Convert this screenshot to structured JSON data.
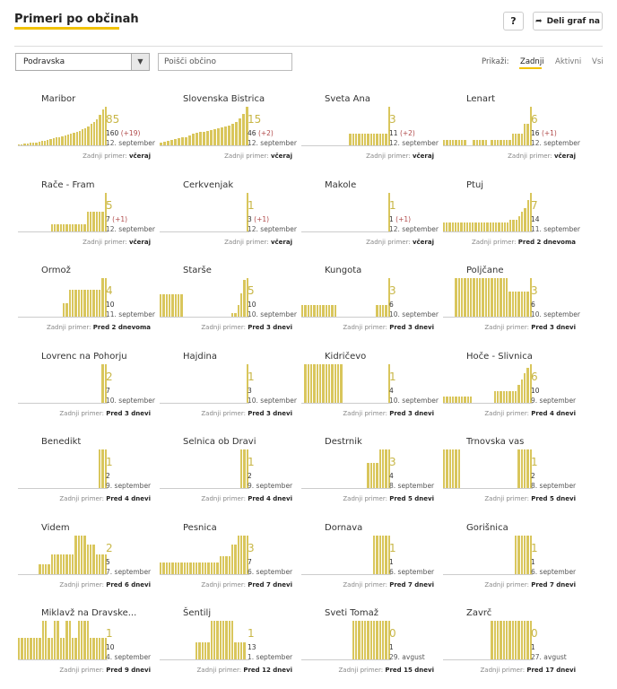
{
  "header": {
    "title": "Primeri po občinah",
    "help_label": "?",
    "share_label": "Deli graf na"
  },
  "filters": {
    "region_selected": "Podravska",
    "search_placeholder": "Poišči občino"
  },
  "view": {
    "label": "Prikaži:",
    "tabs": [
      "Zadnji",
      "Aktivni",
      "Vsi"
    ],
    "active_tab": "Zadnji"
  },
  "colors": {
    "accent": "#f2c200",
    "bar": "#d9c65c",
    "delta": "#b04848"
  },
  "last_case_label": "Zadnji primer:",
  "municipalities": [
    {
      "name": "Maribor",
      "big": "85",
      "total": "160",
      "delta": "(+19)",
      "date": "12. september",
      "last": "včeraj",
      "bars": [
        0.02,
        0.03,
        0.05,
        0.05,
        0.07,
        0.08,
        0.08,
        0.1,
        0.12,
        0.12,
        0.15,
        0.16,
        0.18,
        0.2,
        0.22,
        0.24,
        0.26,
        0.28,
        0.3,
        0.32,
        0.35,
        0.38,
        0.42,
        0.45,
        0.5,
        0.55,
        0.6,
        0.68,
        0.78,
        0.92,
        1.0
      ]
    },
    {
      "name": "Slovenska Bistrica",
      "big": "15",
      "total": "46",
      "delta": "(+2)",
      "date": "12. september",
      "last": "včeraj",
      "bars": [
        0.08,
        0.1,
        0.12,
        0.14,
        0.16,
        0.18,
        0.2,
        0.22,
        0.26,
        0.3,
        0.32,
        0.34,
        0.36,
        0.38,
        0.4,
        0.42,
        0.44,
        0.46,
        0.48,
        0.52,
        0.55,
        0.6,
        0.7,
        0.82,
        1.0
      ]
    },
    {
      "name": "Sveta Ana",
      "big": "3",
      "total": "11",
      "delta": "(+2)",
      "date": "12. september",
      "last": "včeraj",
      "bars": [
        0,
        0,
        0,
        0,
        0,
        0,
        0,
        0,
        0,
        0,
        0,
        0,
        0,
        0,
        0,
        0,
        0.3,
        0.3,
        0.3,
        0.3,
        0.3,
        0.3,
        0.3,
        0.3,
        0.3,
        0.3,
        0.3,
        0.3,
        0.3,
        1.0
      ]
    },
    {
      "name": "Lenart",
      "big": "6",
      "total": "16",
      "delta": "(+1)",
      "date": "12. september",
      "last": "včeraj",
      "bars": [
        0.15,
        0.15,
        0.15,
        0.15,
        0.15,
        0.15,
        0.15,
        0.15,
        0,
        0,
        0.15,
        0.15,
        0.15,
        0.15,
        0.15,
        0,
        0.15,
        0.15,
        0.15,
        0.15,
        0.15,
        0.15,
        0.15,
        0.3,
        0.3,
        0.3,
        0.3,
        0.55,
        0.55,
        1.0
      ]
    },
    {
      "name": "Rače - Fram",
      "big": "5",
      "total": "7",
      "delta": "(+1)",
      "date": "12. september",
      "last": "včeraj",
      "bars": [
        0,
        0,
        0,
        0,
        0,
        0,
        0,
        0,
        0,
        0,
        0,
        0.18,
        0.18,
        0.18,
        0.18,
        0.18,
        0.18,
        0.18,
        0.18,
        0.18,
        0.18,
        0.18,
        0.18,
        0.5,
        0.5,
        0.5,
        0.5,
        0.5,
        0.5,
        1.0
      ]
    },
    {
      "name": "Cerkvenjak",
      "big": "1",
      "total": "3",
      "delta": "(+1)",
      "date": "12. september",
      "last": "včeraj",
      "bars": [
        0,
        0,
        0,
        0,
        0,
        0,
        0,
        0,
        0,
        0,
        0,
        0,
        0,
        0,
        0,
        0,
        0,
        0,
        0,
        0,
        0,
        0,
        0,
        0,
        0,
        0,
        0,
        0,
        0,
        1.0
      ]
    },
    {
      "name": "Makole",
      "big": "1",
      "total": "1",
      "delta": "(+1)",
      "date": "12. september",
      "last": "včeraj",
      "bars": [
        0,
        0,
        0,
        0,
        0,
        0,
        0,
        0,
        0,
        0,
        0,
        0,
        0,
        0,
        0,
        0,
        0,
        0,
        0,
        0,
        0,
        0,
        0,
        0,
        0,
        0,
        0,
        0,
        0,
        1.0
      ]
    },
    {
      "name": "Ptuj",
      "big": "7",
      "total": "14",
      "delta": "",
      "date": "11. september",
      "last": "Pred 2 dnevoma",
      "bars": [
        0.22,
        0.22,
        0.22,
        0.22,
        0.22,
        0.22,
        0.22,
        0.22,
        0.22,
        0.22,
        0.22,
        0.22,
        0.22,
        0.22,
        0.22,
        0.22,
        0.22,
        0.22,
        0.22,
        0.22,
        0.22,
        0.22,
        0.22,
        0.28,
        0.28,
        0.28,
        0.38,
        0.5,
        0.6,
        0.8,
        1.0
      ]
    },
    {
      "name": "Ormož",
      "big": "4",
      "total": "10",
      "delta": "",
      "date": "11. september",
      "last": "Pred 2 dnevoma",
      "bars": [
        0,
        0,
        0,
        0,
        0,
        0,
        0,
        0,
        0,
        0,
        0,
        0,
        0,
        0,
        0,
        0.35,
        0.35,
        0.7,
        0.7,
        0.7,
        0.7,
        0.7,
        0.7,
        0.7,
        0.7,
        0.7,
        0.7,
        0.7,
        1.0,
        1.0
      ]
    },
    {
      "name": "Starše",
      "big": "5",
      "total": "10",
      "delta": "",
      "date": "10. september",
      "last": "Pred 3 dnevi",
      "bars": [
        0.58,
        0.58,
        0.58,
        0.58,
        0.58,
        0.58,
        0.58,
        0.58,
        0,
        0,
        0,
        0,
        0,
        0,
        0,
        0,
        0,
        0,
        0,
        0,
        0,
        0,
        0,
        0,
        0.1,
        0.1,
        0.3,
        0.6,
        0.95,
        1.0
      ]
    },
    {
      "name": "Kungota",
      "big": "3",
      "total": "6",
      "delta": "",
      "date": "10. september",
      "last": "Pred 3 dnevi",
      "bars": [
        0.3,
        0.3,
        0.3,
        0.3,
        0.3,
        0.3,
        0.3,
        0.3,
        0.3,
        0.3,
        0.3,
        0.3,
        0,
        0,
        0,
        0,
        0,
        0,
        0,
        0,
        0,
        0,
        0,
        0,
        0,
        0.3,
        0.3,
        0.3,
        0.3,
        1.0
      ]
    },
    {
      "name": "Poljčane",
      "big": "3",
      "total": "6",
      "delta": "",
      "date": "10. september",
      "last": "Pred 3 dnevi",
      "bars": [
        0,
        0,
        0,
        0,
        1.0,
        1.0,
        1.0,
        1.0,
        1.0,
        1.0,
        1.0,
        1.0,
        1.0,
        1.0,
        1.0,
        1.0,
        1.0,
        1.0,
        1.0,
        1.0,
        1.0,
        1.0,
        0.65,
        0.65,
        0.65,
        0.65,
        0.65,
        0.65,
        0.65,
        1.0
      ]
    },
    {
      "name": "Lovrenc na Pohorju",
      "big": "2",
      "total": "7",
      "delta": "",
      "date": "10. september",
      "last": "Pred 3 dnevi",
      "bars": [
        0,
        0,
        0,
        0,
        0,
        0,
        0,
        0,
        0,
        0,
        0,
        0,
        0,
        0,
        0,
        0,
        0,
        0,
        0,
        0,
        0,
        0,
        0,
        0,
        0,
        0,
        0,
        0,
        1.0,
        1.0
      ]
    },
    {
      "name": "Hajdina",
      "big": "1",
      "total": "3",
      "delta": "",
      "date": "10. september",
      "last": "Pred 3 dnevi",
      "bars": [
        0,
        0,
        0,
        0,
        0,
        0,
        0,
        0,
        0,
        0,
        0,
        0,
        0,
        0,
        0,
        0,
        0,
        0,
        0,
        0,
        0,
        0,
        0,
        0,
        0,
        0,
        0,
        0,
        0,
        1.0
      ]
    },
    {
      "name": "Kidričevo",
      "big": "1",
      "total": "4",
      "delta": "",
      "date": "10. september",
      "last": "Pred 3 dnevi",
      "bars": [
        0,
        1.0,
        1.0,
        1.0,
        1.0,
        1.0,
        1.0,
        1.0,
        1.0,
        1.0,
        1.0,
        1.0,
        1.0,
        1.0,
        0,
        0,
        0,
        0,
        0,
        0,
        0,
        0,
        0,
        0,
        0,
        0,
        0,
        0,
        0,
        1.0
      ]
    },
    {
      "name": "Hoče - Slivnica",
      "big": "6",
      "total": "10",
      "delta": "",
      "date": "9. september",
      "last": "Pred 4 dnevi",
      "bars": [
        0.15,
        0.15,
        0.15,
        0.15,
        0.15,
        0.15,
        0.15,
        0.15,
        0.15,
        0.15,
        0,
        0,
        0,
        0,
        0,
        0,
        0,
        0.3,
        0.3,
        0.3,
        0.3,
        0.3,
        0.3,
        0.3,
        0.3,
        0.45,
        0.6,
        0.75,
        0.9,
        1.0
      ]
    },
    {
      "name": "Benedikt",
      "big": "1",
      "total": "2",
      "delta": "",
      "date": "9. september",
      "last": "Pred 4 dnevi",
      "bars": [
        0,
        0,
        0,
        0,
        0,
        0,
        0,
        0,
        0,
        0,
        0,
        0,
        0,
        0,
        0,
        0,
        0,
        0,
        0,
        0,
        0,
        0,
        0,
        0,
        0,
        0,
        0,
        1.0,
        1.0,
        1.0
      ]
    },
    {
      "name": "Selnica ob Dravi",
      "big": "1",
      "total": "2",
      "delta": "",
      "date": "9. september",
      "last": "Pred 4 dnevi",
      "bars": [
        0,
        0,
        0,
        0,
        0,
        0,
        0,
        0,
        0,
        0,
        0,
        0,
        0,
        0,
        0,
        0,
        0,
        0,
        0,
        0,
        0,
        0,
        0,
        0,
        0,
        0,
        0,
        1.0,
        1.0,
        1.0
      ]
    },
    {
      "name": "Destrnik",
      "big": "3",
      "total": "4",
      "delta": "",
      "date": "8. september",
      "last": "Pred 5 dnevi",
      "bars": [
        0,
        0,
        0,
        0,
        0,
        0,
        0,
        0,
        0,
        0,
        0,
        0,
        0,
        0,
        0,
        0,
        0,
        0,
        0,
        0,
        0,
        0,
        0.65,
        0.65,
        0.65,
        0.65,
        1.0,
        1.0,
        1.0,
        1.0
      ]
    },
    {
      "name": "Trnovska vas",
      "big": "1",
      "total": "2",
      "delta": "",
      "date": "8. september",
      "last": "Pred 5 dnevi",
      "bars": [
        1.0,
        1.0,
        1.0,
        1.0,
        1.0,
        1.0,
        0,
        0,
        0,
        0,
        0,
        0,
        0,
        0,
        0,
        0,
        0,
        0,
        0,
        0,
        0,
        0,
        0,
        0,
        0,
        1.0,
        1.0,
        1.0,
        1.0,
        1.0
      ]
    },
    {
      "name": "Videm",
      "big": "2",
      "total": "5",
      "delta": "",
      "date": "7. september",
      "last": "Pred 6 dnevi",
      "bars": [
        0,
        0,
        0,
        0,
        0,
        0,
        0,
        0.25,
        0.25,
        0.25,
        0.25,
        0.5,
        0.5,
        0.5,
        0.5,
        0.5,
        0.5,
        0.5,
        0.5,
        1.0,
        1.0,
        1.0,
        1.0,
        0.75,
        0.75,
        0.75,
        0.5,
        0.5,
        0.5,
        0.5
      ]
    },
    {
      "name": "Pesnica",
      "big": "3",
      "total": "7",
      "delta": "",
      "date": "6. september",
      "last": "Pred 7 dnevi",
      "bars": [
        0.3,
        0.3,
        0.3,
        0.3,
        0.3,
        0.3,
        0.3,
        0.3,
        0.3,
        0.3,
        0.3,
        0.3,
        0.3,
        0.3,
        0.3,
        0.3,
        0.3,
        0.3,
        0.3,
        0.3,
        0.45,
        0.45,
        0.45,
        0.45,
        0.75,
        0.75,
        1.0,
        1.0,
        1.0,
        1.0
      ]
    },
    {
      "name": "Dornava",
      "big": "1",
      "total": "1",
      "delta": "",
      "date": "6. september",
      "last": "Pred 7 dnevi",
      "bars": [
        0,
        0,
        0,
        0,
        0,
        0,
        0,
        0,
        0,
        0,
        0,
        0,
        0,
        0,
        0,
        0,
        0,
        0,
        0,
        0,
        0,
        0,
        0,
        0,
        1.0,
        1.0,
        1.0,
        1.0,
        1.0,
        1.0
      ]
    },
    {
      "name": "Gorišnica",
      "big": "1",
      "total": "1",
      "delta": "",
      "date": "6. september",
      "last": "Pred 7 dnevi",
      "bars": [
        0,
        0,
        0,
        0,
        0,
        0,
        0,
        0,
        0,
        0,
        0,
        0,
        0,
        0,
        0,
        0,
        0,
        0,
        0,
        0,
        0,
        0,
        0,
        0,
        1.0,
        1.0,
        1.0,
        1.0,
        1.0,
        1.0
      ]
    },
    {
      "name": "Miklavž na Dravske...",
      "big": "1",
      "total": "10",
      "delta": "",
      "date": "4. september",
      "last": "Pred 9 dnevi",
      "bars": [
        0.55,
        0.55,
        0.55,
        0.55,
        0.55,
        0.55,
        0.55,
        0.55,
        1.0,
        1.0,
        0.55,
        0.55,
        1.0,
        1.0,
        0.55,
        0.55,
        1.0,
        1.0,
        0.55,
        0.55,
        1.0,
        1.0,
        1.0,
        1.0,
        0.55,
        0.55,
        0.55,
        0.55,
        0.55,
        0.55
      ]
    },
    {
      "name": "Šentilj",
      "big": "1",
      "total": "13",
      "delta": "",
      "date": "1. september",
      "last": "Pred 12 dnevi",
      "bars": [
        0,
        0,
        0,
        0,
        0,
        0,
        0,
        0,
        0,
        0,
        0,
        0,
        0.45,
        0.45,
        0.45,
        0.45,
        0.45,
        1.0,
        1.0,
        1.0,
        1.0,
        1.0,
        1.0,
        1.0,
        1.0,
        0.45,
        0.45,
        0.45,
        0.45,
        0
      ]
    },
    {
      "name": "Sveti Tomaž",
      "big": "0",
      "total": "1",
      "delta": "",
      "date": "29. avgust",
      "last": "Pred 15 dnevi",
      "bars": [
        0,
        0,
        0,
        0,
        0,
        0,
        0,
        0,
        0,
        0,
        0,
        0,
        0,
        0,
        0,
        0,
        0,
        1.0,
        1.0,
        1.0,
        1.0,
        1.0,
        1.0,
        1.0,
        1.0,
        1.0,
        1.0,
        1.0,
        1.0,
        1.0
      ]
    },
    {
      "name": "Zavrč",
      "big": "0",
      "total": "1",
      "delta": "",
      "date": "27. avgust",
      "last": "Pred 17 dnevi",
      "bars": [
        0,
        0,
        0,
        0,
        0,
        0,
        0,
        0,
        0,
        0,
        0,
        0,
        0,
        0,
        0,
        0,
        1.0,
        1.0,
        1.0,
        1.0,
        1.0,
        1.0,
        1.0,
        1.0,
        1.0,
        1.0,
        1.0,
        1.0,
        1.0,
        1.0
      ]
    }
  ]
}
